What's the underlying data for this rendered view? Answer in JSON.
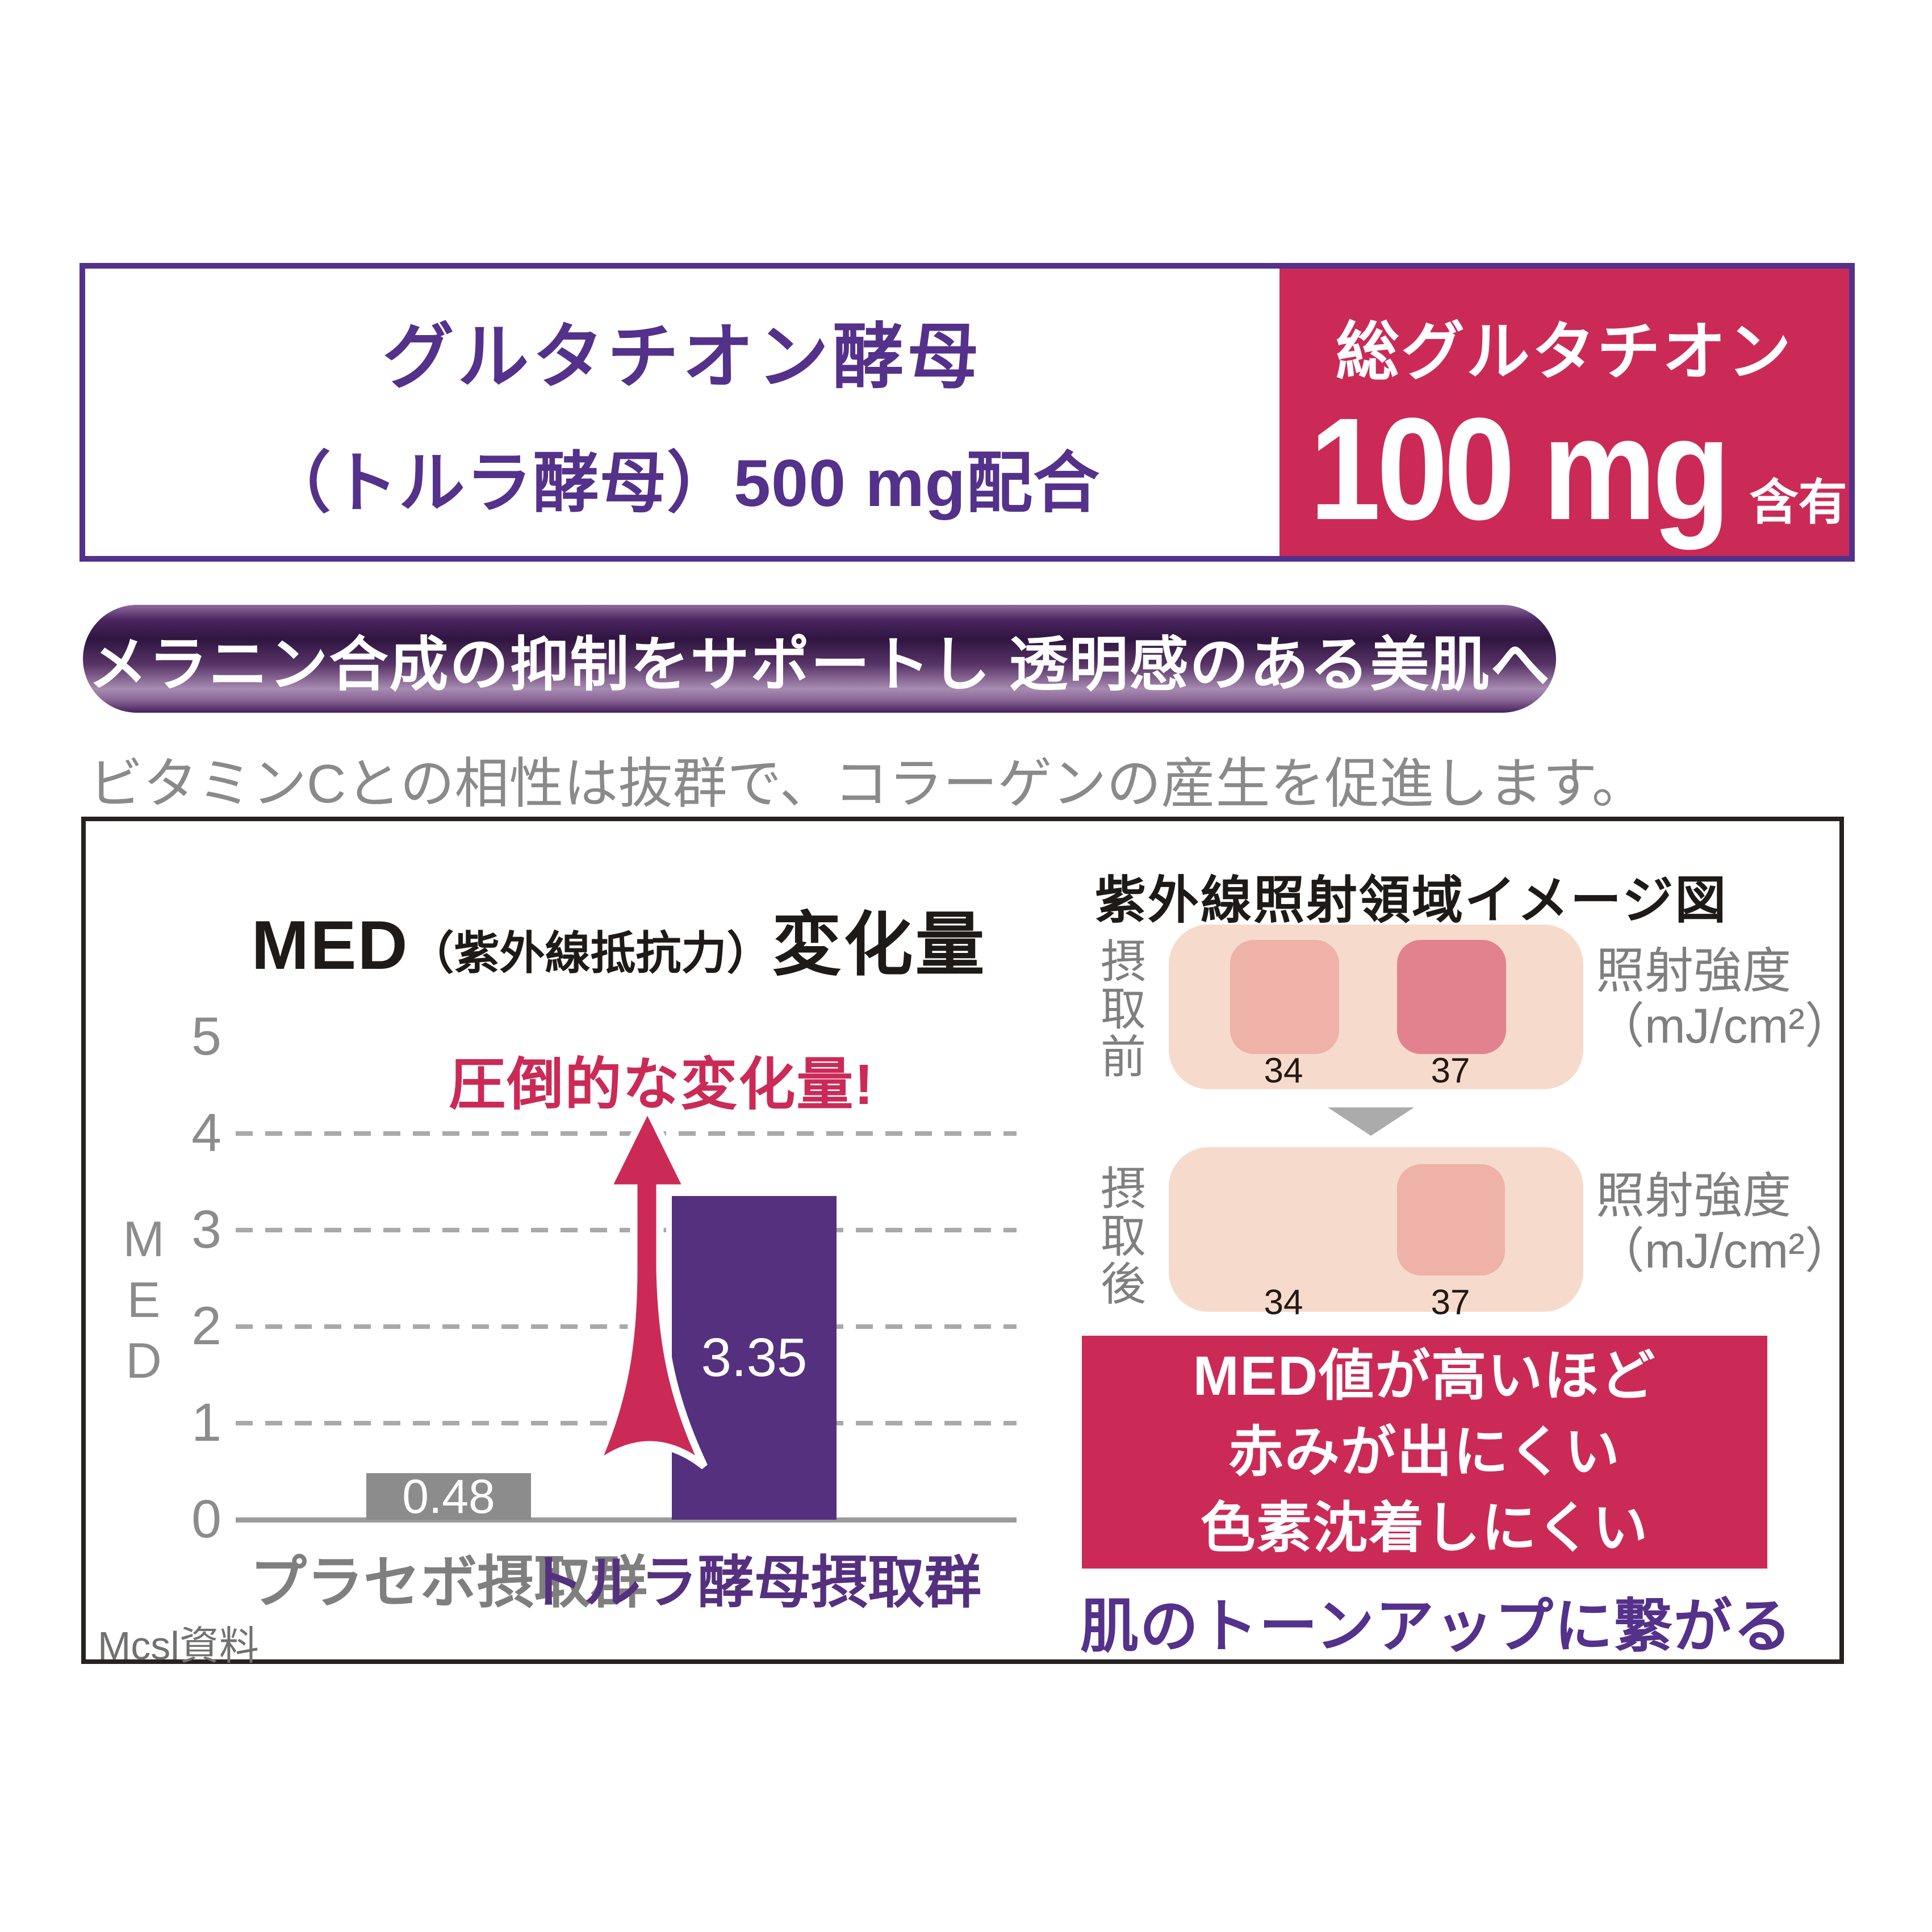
{
  "header": {
    "title_line1": "グルタチオン酵母",
    "title_line2": "（トルラ酵母）500 mg配合",
    "badge_title": "総グルタチオン",
    "badge_amount": "100 mg",
    "badge_suffix": "含有"
  },
  "banner": {
    "text": "メラニン合成の抑制をサポートし 透明感のある美肌へ"
  },
  "subtitle": "ビタミンCとの相性は抜群で、コラーゲンの産生を促進します。",
  "chart_panel": {
    "title_med": "MED",
    "title_paren": "（紫外線抵抗力）",
    "title_suffix": "変化量",
    "annotation": "圧倒的な変化量!",
    "y_axis_label": "MED",
    "source": "Mcsl資料"
  },
  "chart_data": {
    "type": "bar",
    "title": "MED（紫外線抵抗力）変化量",
    "categories": [
      "プラセボ摂取群",
      "トルラ酵母摂取群"
    ],
    "values": [
      0.48,
      3.35
    ],
    "value_labels": [
      "0.48",
      "3.35"
    ],
    "bar_colors": [
      "#8C8C8C",
      "#55307F"
    ],
    "category_colors": [
      "#7F7F7F",
      "#55307F"
    ],
    "xlabel": "",
    "ylabel": "MED",
    "ylim": [
      0,
      5
    ],
    "yticks": [
      0,
      1,
      2,
      3,
      4,
      5
    ],
    "gridlines": [
      1,
      2,
      3,
      4
    ],
    "grid_style": "dashed",
    "legend": false,
    "annotation": "圧倒的な変化量!",
    "source": "Mcsl資料"
  },
  "uv_panel": {
    "title": "紫外線照射領域イメージ図",
    "before_label": "摂取前",
    "after_label": "摂取後",
    "intensity_line1": "照射強度",
    "intensity_line2": "（mJ/cm²）",
    "before_values": [
      "34",
      "37"
    ],
    "after_values": [
      "34",
      "37"
    ],
    "med_note_lines": [
      "MED値が高いほど",
      "赤みが出にくい",
      "色素沈着しにくい"
    ],
    "conclusion": "肌のトーンアップに繋がる"
  },
  "colors": {
    "purple": "#54318A",
    "bar_purple": "#55307F",
    "crimson": "#CB2A57",
    "gray_bar": "#8C8C8C",
    "skin_base": "#F6DBCD",
    "skin_spot_light": "#EEB2A8",
    "skin_spot_dark": "#E2828E",
    "banner_gradient_mid": "#A78BB1"
  }
}
